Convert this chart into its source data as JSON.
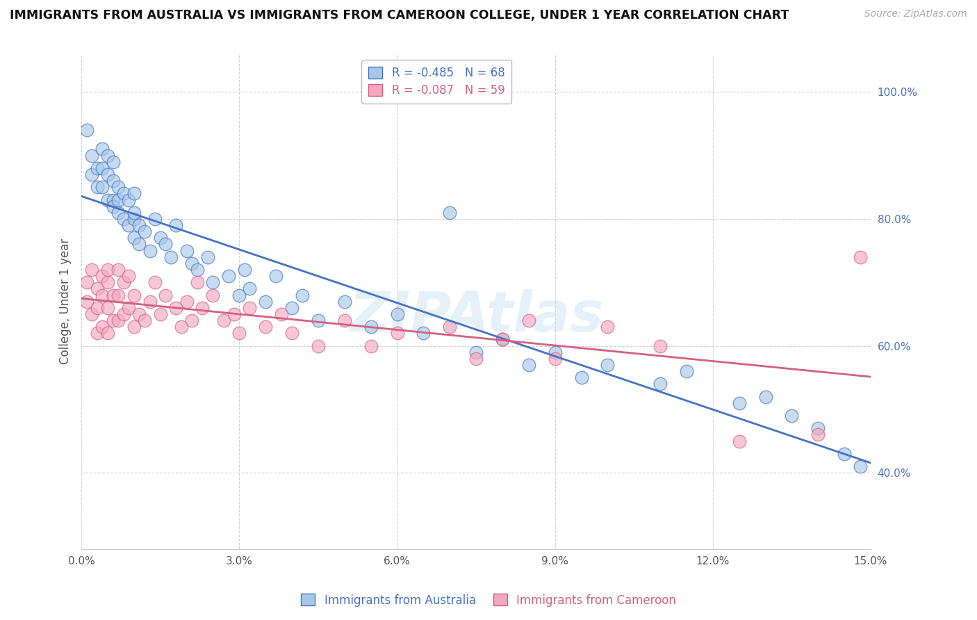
{
  "title": "IMMIGRANTS FROM AUSTRALIA VS IMMIGRANTS FROM CAMEROON COLLEGE, UNDER 1 YEAR CORRELATION CHART",
  "source": "Source: ZipAtlas.com",
  "ylabel": "College, Under 1 year",
  "legend_label1": "Immigrants from Australia",
  "legend_label2": "Immigrants from Cameroon",
  "R1": -0.485,
  "N1": 68,
  "R2": -0.087,
  "N2": 59,
  "color1": "#a8c8e8",
  "color2": "#f4a8c0",
  "line_color1": "#4472c4",
  "line_color2": "#d46080",
  "xlim": [
    0.0,
    15.0
  ],
  "ylim": [
    28.0,
    106.0
  ],
  "xticks": [
    0.0,
    3.0,
    6.0,
    9.0,
    12.0,
    15.0
  ],
  "xticklabels": [
    "0.0%",
    "3.0%",
    "6.0%",
    "9.0%",
    "12.0%",
    "15.0%"
  ],
  "yticks": [
    40.0,
    60.0,
    80.0,
    100.0
  ],
  "yticklabels": [
    "40.0%",
    "60.0%",
    "80.0%",
    "100.0%"
  ],
  "aus_x": [
    0.1,
    0.2,
    0.2,
    0.3,
    0.3,
    0.4,
    0.4,
    0.4,
    0.5,
    0.5,
    0.5,
    0.6,
    0.6,
    0.6,
    0.6,
    0.7,
    0.7,
    0.7,
    0.8,
    0.8,
    0.9,
    0.9,
    1.0,
    1.0,
    1.0,
    1.0,
    1.1,
    1.1,
    1.2,
    1.3,
    1.4,
    1.5,
    1.6,
    1.7,
    1.8,
    2.0,
    2.1,
    2.2,
    2.4,
    2.5,
    2.8,
    3.0,
    3.1,
    3.2,
    3.5,
    3.7,
    4.0,
    4.2,
    4.5,
    5.0,
    5.5,
    6.0,
    6.5,
    7.0,
    7.5,
    8.0,
    8.5,
    9.0,
    9.5,
    10.0,
    11.0,
    11.5,
    12.5,
    13.0,
    13.5,
    14.0,
    14.5,
    14.8
  ],
  "aus_y": [
    94,
    90,
    87,
    88,
    85,
    91,
    88,
    85,
    90,
    87,
    83,
    86,
    83,
    89,
    82,
    85,
    81,
    83,
    84,
    80,
    83,
    79,
    84,
    80,
    77,
    81,
    79,
    76,
    78,
    75,
    80,
    77,
    76,
    74,
    79,
    75,
    73,
    72,
    74,
    70,
    71,
    68,
    72,
    69,
    67,
    71,
    66,
    68,
    64,
    67,
    63,
    65,
    62,
    81,
    59,
    61,
    57,
    59,
    55,
    57,
    54,
    56,
    51,
    52,
    49,
    47,
    43,
    41
  ],
  "cam_x": [
    0.1,
    0.1,
    0.2,
    0.2,
    0.3,
    0.3,
    0.3,
    0.4,
    0.4,
    0.4,
    0.5,
    0.5,
    0.5,
    0.5,
    0.6,
    0.6,
    0.7,
    0.7,
    0.7,
    0.8,
    0.8,
    0.9,
    0.9,
    1.0,
    1.0,
    1.1,
    1.2,
    1.3,
    1.4,
    1.5,
    1.6,
    1.8,
    1.9,
    2.0,
    2.1,
    2.2,
    2.3,
    2.5,
    2.7,
    2.9,
    3.0,
    3.2,
    3.5,
    3.8,
    4.0,
    4.5,
    5.0,
    5.5,
    6.0,
    7.0,
    7.5,
    8.0,
    8.5,
    9.0,
    10.0,
    11.0,
    12.5,
    14.0,
    14.8
  ],
  "cam_y": [
    70,
    67,
    72,
    65,
    69,
    66,
    62,
    71,
    68,
    63,
    70,
    66,
    62,
    72,
    68,
    64,
    72,
    68,
    64,
    70,
    65,
    71,
    66,
    68,
    63,
    65,
    64,
    67,
    70,
    65,
    68,
    66,
    63,
    67,
    64,
    70,
    66,
    68,
    64,
    65,
    62,
    66,
    63,
    65,
    62,
    60,
    64,
    60,
    62,
    63,
    58,
    61,
    64,
    58,
    63,
    60,
    45,
    46,
    74
  ]
}
